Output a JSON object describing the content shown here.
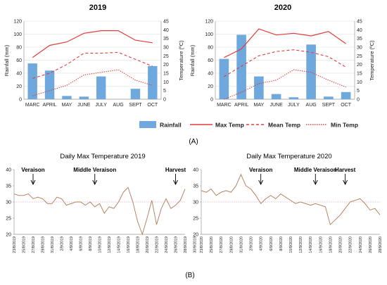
{
  "panel_labels": {
    "a": "(A)",
    "b": "(B)"
  },
  "legend": {
    "rainfall": "Rainfall",
    "max_temp": "Max Temp",
    "mean_temp": "Mean Temp",
    "min_temp": "Min Temp"
  },
  "colors": {
    "bar": "#6fa8dc",
    "temp": "#e33b3b",
    "daily_line": "#b07855",
    "ref_line": "#d9a3c4"
  },
  "chart_data": [
    {
      "type": "bar",
      "title": "2019",
      "categories": [
        "MARC",
        "APRIL",
        "MAY",
        "JUNE",
        "JULY",
        "AUG",
        "SEPT",
        "OCT"
      ],
      "ylabel": "Rainfall (mm)",
      "y2label": "Temperature (ºC)",
      "ylim": [
        0,
        120
      ],
      "y2lim": [
        0,
        45
      ],
      "yticks": [
        0,
        20,
        40,
        60,
        80,
        100,
        120
      ],
      "y2ticks": [
        0,
        5,
        10,
        15,
        20,
        25,
        30,
        35,
        40,
        45
      ],
      "series": [
        {
          "name": "Rainfall",
          "kind": "bar",
          "axis": "left",
          "values": [
            55,
            44,
            5,
            4,
            35,
            0,
            16,
            51
          ]
        },
        {
          "name": "Max Temp",
          "kind": "line",
          "axis": "right",
          "style": "solid",
          "values": [
            24,
            31,
            33,
            38,
            39.5,
            39.5,
            34,
            32.5
          ]
        },
        {
          "name": "Mean Temp",
          "kind": "line",
          "axis": "right",
          "style": "dashed",
          "values": [
            12,
            15,
            20,
            26.5,
            26.5,
            27,
            23,
            19
          ]
        },
        {
          "name": "Min Temp",
          "kind": "line",
          "axis": "right",
          "style": "dotted",
          "values": [
            2,
            5,
            8,
            14,
            15.5,
            17,
            11,
            8
          ]
        }
      ]
    },
    {
      "type": "bar",
      "title": "2020",
      "categories": [
        "MARC",
        "APRIL",
        "MAY",
        "JUNE",
        "JULY",
        "AUG",
        "SEPT",
        "OCT"
      ],
      "ylabel": "Rainfall (mm)",
      "y2label": "Temperature (ºC)",
      "ylim": [
        0,
        120
      ],
      "y2lim": [
        0,
        45
      ],
      "yticks": [
        0,
        20,
        40,
        60,
        80,
        100,
        120
      ],
      "y2ticks": [
        0,
        5,
        10,
        15,
        20,
        25,
        30,
        35,
        40,
        45
      ],
      "series": [
        {
          "name": "Rainfall",
          "kind": "bar",
          "axis": "left",
          "values": [
            62,
            99,
            35,
            8,
            3,
            84,
            4,
            11
          ]
        },
        {
          "name": "Max Temp",
          "kind": "line",
          "axis": "right",
          "style": "solid",
          "values": [
            24,
            29,
            40.5,
            37,
            38,
            36.5,
            39,
            32
          ]
        },
        {
          "name": "Mean Temp",
          "kind": "line",
          "axis": "right",
          "style": "dashed",
          "values": [
            13,
            19,
            25,
            27.5,
            28.5,
            27,
            24.5,
            18.5
          ]
        },
        {
          "name": "Min Temp",
          "kind": "line",
          "axis": "right",
          "style": "dotted",
          "values": [
            0,
            4,
            9,
            11,
            17,
            15.5,
            11,
            7
          ]
        }
      ]
    },
    {
      "type": "line",
      "title": "Daily Max Temperature 2019",
      "ylim": [
        20,
        40
      ],
      "yticks": [
        20,
        25,
        30,
        35,
        40
      ],
      "reference_line": 30,
      "date_labels": [
        "23/8/2019",
        "25/8/2019",
        "27/8/2019",
        "29/8/2019",
        "31/8/2019",
        "2/9/2019",
        "4/9/2019",
        "6/9/2019",
        "8/9/2019",
        "10/9/2019",
        "12/9/2019",
        "14/9/2019",
        "16/9/2019",
        "18/9/2019",
        "20/9/2019",
        "22/9/2019",
        "24/9/2019",
        "26/9/2019",
        "28/9/2019",
        "30/9/2019"
      ],
      "values": [
        32.5,
        32,
        32,
        32.5,
        31,
        31.5,
        31,
        29.5,
        29.5,
        31.5,
        31,
        29,
        29.5,
        30,
        30,
        29,
        30,
        28.5,
        29.5,
        26.5,
        28.5,
        28,
        30,
        33,
        34.5,
        30,
        24,
        20,
        25,
        30.5,
        23,
        28,
        31,
        28,
        29,
        30.5,
        34
      ],
      "annotations": [
        {
          "text": "Veraison",
          "index": 4
        },
        {
          "text": "Middle Veraison",
          "index": 17
        },
        {
          "text": "Harvest",
          "index": 34
        }
      ]
    },
    {
      "type": "line",
      "title": "Daily Max Temperature 2020",
      "ylim": [
        20,
        40
      ],
      "yticks": [
        20,
        25,
        30,
        35,
        40
      ],
      "reference_line": 30,
      "date_labels": [
        "23/8/2020",
        "25/8/2020",
        "27/8/2020",
        "29/8/2020",
        "31/8/2020",
        "2/9/2020",
        "4/9/2020",
        "6/9/2020",
        "8/9/2020",
        "10/9/2020",
        "12/9/2020",
        "14/9/2020",
        "16/9/2020",
        "18/9/2020",
        "20/9/2020",
        "22/9/2020",
        "24/9/2020",
        "26/9/2020",
        "28/9/2020",
        "30/9/2020"
      ],
      "values": [
        33.5,
        33,
        34,
        32,
        33,
        33.5,
        33,
        35,
        38.5,
        35,
        34,
        32,
        29.5,
        31,
        32,
        31,
        32.5,
        31.5,
        30.5,
        29.5,
        30,
        29.5,
        29,
        29.5,
        29,
        28.5,
        23,
        24.5,
        26,
        28,
        30,
        30.5,
        31,
        29.5,
        27.5,
        28,
        26
      ],
      "annotations": [
        {
          "text": "Veraison",
          "index": 12
        },
        {
          "text": "Middle Veraison",
          "index": 23
        },
        {
          "text": "Harvest",
          "index": 29
        }
      ]
    }
  ]
}
